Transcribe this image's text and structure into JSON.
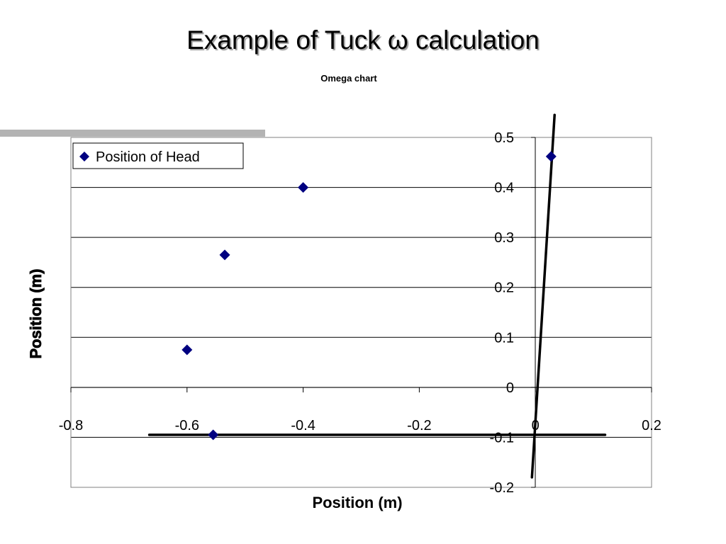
{
  "slide": {
    "title": "Example of Tuck ω calculation"
  },
  "chart_data": {
    "type": "scatter",
    "title": "Omega chart",
    "xlabel": "Position (m)",
    "ylabel": "Position (m)",
    "xlim": [
      -0.8,
      0.2
    ],
    "ylim": [
      -0.2,
      0.5
    ],
    "x_ticks": [
      -0.8,
      -0.6,
      -0.4,
      -0.2,
      0,
      0.2
    ],
    "y_ticks": [
      -0.2,
      -0.1,
      0,
      0.1,
      0.2,
      0.3,
      0.4,
      0.5
    ],
    "x_tick_labels": [
      "-0.8",
      "-0.6",
      "-0.4",
      "-0.2",
      "0",
      "0.2"
    ],
    "y_tick_labels": [
      "-0.2",
      "-0.1",
      "0",
      "0.1",
      "0.2",
      "0.3",
      "0.4",
      "0.5"
    ],
    "grid": true,
    "legend_position": "top-left",
    "series": [
      {
        "name": "Position of Head",
        "marker": "diamond",
        "color": "#000080",
        "points": [
          {
            "x": -0.6,
            "y": 0.075
          },
          {
            "x": -0.535,
            "y": 0.265
          },
          {
            "x": -0.4,
            "y": 0.4
          },
          {
            "x": -0.555,
            "y": -0.095
          },
          {
            "x": 0.027,
            "y": 0.462
          }
        ]
      }
    ],
    "annotation_lines": [
      {
        "x1": -0.665,
        "y1": -0.095,
        "x2": 0.12,
        "y2": -0.095,
        "color": "#000000"
      },
      {
        "x1": -0.006,
        "y1": -0.18,
        "x2": 0.033,
        "y2": 0.545,
        "color": "#000000"
      }
    ]
  }
}
